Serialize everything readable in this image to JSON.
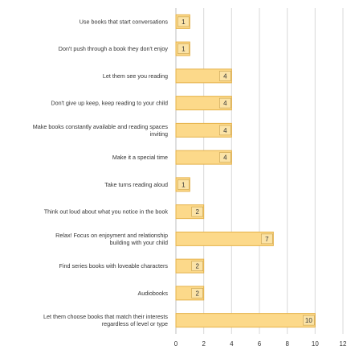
{
  "chart_data": {
    "type": "bar",
    "orientation": "horizontal",
    "categories": [
      "Use books that start conversations",
      "Don't push through a book they don't enjoy",
      "Let them see you reading",
      "Don't give up keep, keep reading to your child",
      "Make books constantly available and reading spaces inviting",
      "Make it a special time",
      "Take turns reading aloud",
      "Think out loud about what you notice in the book",
      "Relax! Focus on enjoyment and relationship building with your child",
      "Find series books with loveable characters",
      "Audiobooks",
      "Let them choose books that match their interests regardless of level or type"
    ],
    "values": [
      1,
      1,
      4,
      4,
      4,
      4,
      1,
      2,
      7,
      2,
      2,
      10
    ],
    "xlim": [
      0,
      12
    ],
    "xticks": [
      0,
      2,
      4,
      6,
      8,
      10,
      12
    ],
    "title": "",
    "xlabel": "",
    "ylabel": "",
    "grid": "vertical",
    "data_labels": true,
    "bar_color": "#FCD98A",
    "bar_border_color": "#E5B24A",
    "label_box_color": "#FBE3A7"
  }
}
